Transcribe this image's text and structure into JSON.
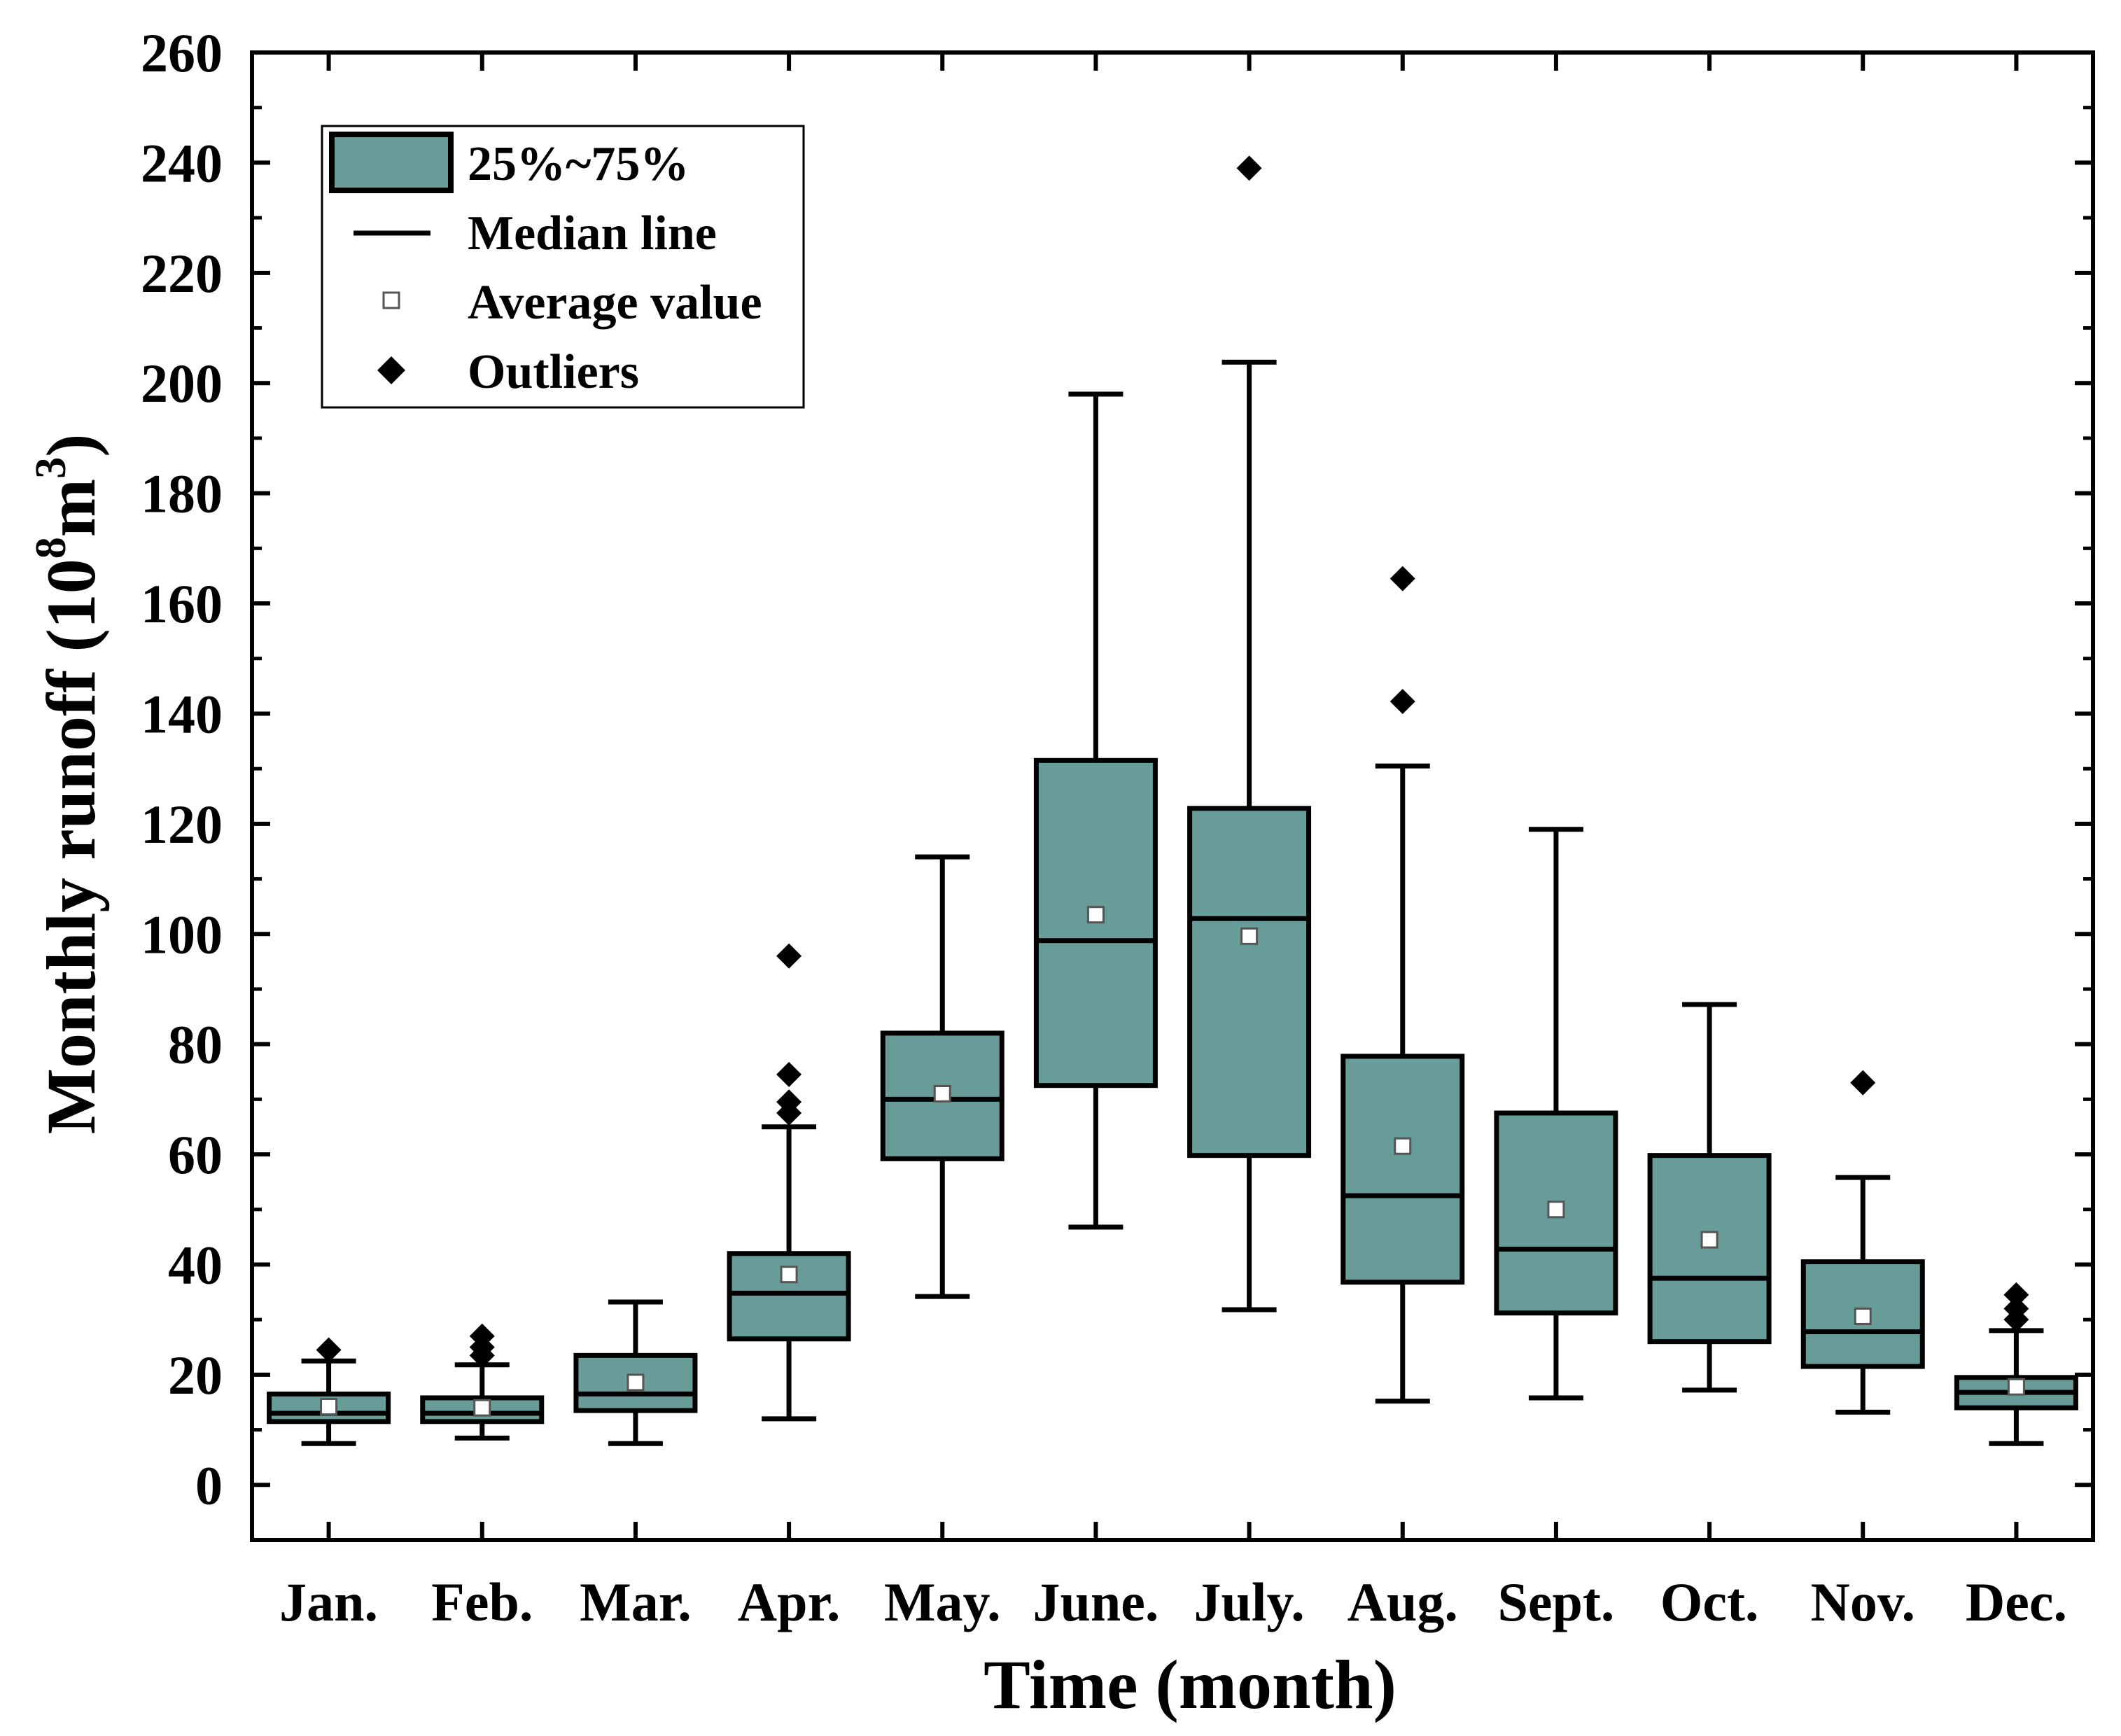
{
  "chart_data": {
    "type": "box",
    "xlabel": "Time (month)",
    "ylabel_main": "Monthly runoff (10",
    "ylabel_sup1": "8",
    "ylabel_mid": "m",
    "ylabel_sup2": "3",
    "ylabel_end": ")",
    "ylim": [
      -10,
      260
    ],
    "yticks": [
      0,
      20,
      40,
      60,
      80,
      100,
      120,
      140,
      160,
      180,
      200,
      220,
      240,
      260
    ],
    "categories": [
      "Jan.",
      "Feb.",
      "Mar.",
      "Apr.",
      "May.",
      "June.",
      "July.",
      "Aug.",
      "Sept.",
      "Oct.",
      "Nov.",
      "Dec."
    ],
    "boxes": [
      {
        "whisker_low": 7.5,
        "q1": 11.5,
        "median": 13.0,
        "q3": 16.5,
        "whisker_high": 22.5,
        "mean": 14.2,
        "outliers": [
          24.5
        ]
      },
      {
        "whisker_low": 8.5,
        "q1": 11.5,
        "median": 13.0,
        "q3": 15.8,
        "whisker_high": 21.8,
        "mean": 14.0,
        "outliers": [
          23.5,
          25.0,
          27.0
        ]
      },
      {
        "whisker_low": 7.5,
        "q1": 13.5,
        "median": 16.5,
        "q3": 23.5,
        "whisker_high": 33.2,
        "mean": 18.6,
        "outliers": []
      },
      {
        "whisker_low": 12.0,
        "q1": 26.5,
        "median": 34.8,
        "q3": 42.0,
        "whisker_high": 65.0,
        "mean": 38.2,
        "outliers": [
          67.5,
          69.5,
          74.5,
          96.0
        ]
      },
      {
        "whisker_low": 34.2,
        "q1": 59.2,
        "median": 70.0,
        "q3": 82.0,
        "whisker_high": 114.0,
        "mean": 71.0,
        "outliers": []
      },
      {
        "whisker_low": 46.8,
        "q1": 72.5,
        "median": 98.8,
        "q3": 131.5,
        "whisker_high": 198.0,
        "mean": 103.5,
        "outliers": []
      },
      {
        "whisker_low": 31.8,
        "q1": 59.8,
        "median": 102.8,
        "q3": 122.8,
        "whisker_high": 203.8,
        "mean": 99.6,
        "outliers": [
          239.0
        ]
      },
      {
        "whisker_low": 15.2,
        "q1": 36.8,
        "median": 52.5,
        "q3": 77.8,
        "whisker_high": 130.5,
        "mean": 61.5,
        "outliers": [
          142.2,
          164.5
        ]
      },
      {
        "whisker_low": 15.8,
        "q1": 31.2,
        "median": 42.8,
        "q3": 67.5,
        "whisker_high": 119.0,
        "mean": 50.0,
        "outliers": []
      },
      {
        "whisker_low": 17.2,
        "q1": 26.0,
        "median": 37.5,
        "q3": 59.8,
        "whisker_high": 87.2,
        "mean": 44.5,
        "outliers": []
      },
      {
        "whisker_low": 13.2,
        "q1": 21.5,
        "median": 27.8,
        "q3": 40.5,
        "whisker_high": 55.8,
        "mean": 30.6,
        "outliers": [
          73.0
        ]
      },
      {
        "whisker_low": 7.5,
        "q1": 14.0,
        "median": 16.8,
        "q3": 19.5,
        "whisker_high": 28.0,
        "mean": 17.8,
        "outliers": [
          30.0,
          32.0,
          34.5
        ]
      }
    ],
    "legend": {
      "position": "top-left",
      "entries": [
        "25%~75%",
        "Median line",
        "Average value",
        "Outliers"
      ]
    },
    "colors": {
      "box_fill": "#679c99",
      "line": "#000000",
      "mean_marker_fill": "#ffffff",
      "mean_marker_stroke": "#555555",
      "background": "#ffffff"
    }
  }
}
